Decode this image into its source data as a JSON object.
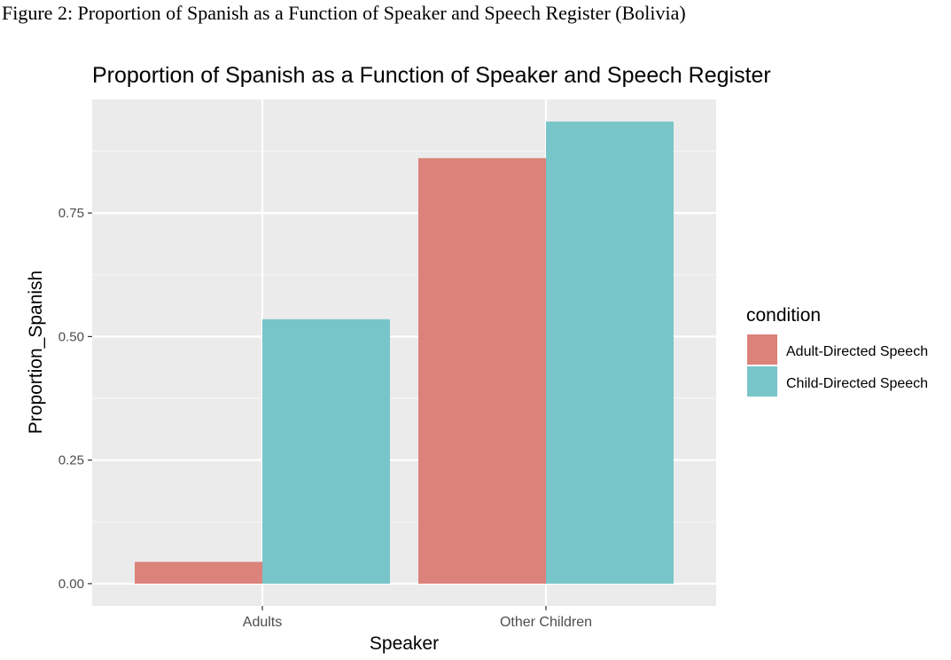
{
  "figure_caption": "Figure 2: Proportion of Spanish as a Function of Speaker and Speech Register (Bolivia)",
  "colors": {
    "panel_background": "#ebebeb",
    "grid_major": "#ffffff",
    "grid_minor": "#f5f5f5",
    "tick_text": "#4d4d4d",
    "axis_title": "#000000"
  },
  "chart_data": {
    "type": "bar",
    "title": "Proportion of Spanish as a Function of Speaker and Speech Register",
    "xlabel": "Speaker",
    "ylabel": "Proportion_Spanish",
    "categories": [
      "Adults",
      "Other Children"
    ],
    "series": [
      {
        "name": "Adult-Directed Speech",
        "color": "#db827a",
        "values": [
          0.044,
          0.861
        ]
      },
      {
        "name": "Child-Directed Speech",
        "color": "#78c5c9",
        "values": [
          0.535,
          0.935
        ]
      }
    ],
    "ylim": [
      -0.045,
      0.98
    ],
    "yticks": [
      0,
      0.25,
      0.5,
      0.75
    ],
    "ytick_labels": [
      "0.00",
      "0.25",
      "0.50",
      "0.75"
    ],
    "grid": true,
    "legend": {
      "title": "condition",
      "placement": "right"
    }
  }
}
